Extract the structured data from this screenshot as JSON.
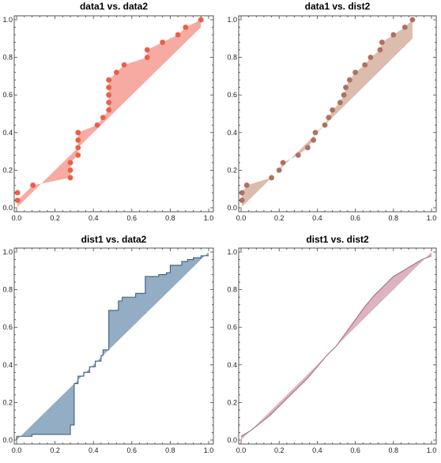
{
  "chart_data": [
    {
      "type": "scatter",
      "title": "data1 vs. data2",
      "xlabel": "",
      "ylabel": "",
      "xlim": [
        0,
        1
      ],
      "ylim": [
        0,
        1
      ],
      "xticks": [
        "0.0",
        "0.2",
        "0.4",
        "0.6",
        "0.8",
        "1.0"
      ],
      "yticks": [
        "0.0",
        "0.2",
        "0.4",
        "0.6",
        "0.8",
        "1.0"
      ],
      "fill_to_diagonal": true,
      "color": "#e8604a",
      "fill_color": "#f7aaa2",
      "points": [
        [
          0.005,
          0.08
        ],
        [
          0.005,
          0.04
        ],
        [
          0.085,
          0.12
        ],
        [
          0.28,
          0.16
        ],
        [
          0.28,
          0.2
        ],
        [
          0.28,
          0.24
        ],
        [
          0.32,
          0.28
        ],
        [
          0.32,
          0.32
        ],
        [
          0.32,
          0.36
        ],
        [
          0.32,
          0.4
        ],
        [
          0.42,
          0.44
        ],
        [
          0.45,
          0.48
        ],
        [
          0.48,
          0.52
        ],
        [
          0.48,
          0.56
        ],
        [
          0.48,
          0.6
        ],
        [
          0.48,
          0.64
        ],
        [
          0.48,
          0.68
        ],
        [
          0.52,
          0.72
        ],
        [
          0.56,
          0.76
        ],
        [
          0.68,
          0.8
        ],
        [
          0.68,
          0.84
        ],
        [
          0.76,
          0.88
        ],
        [
          0.84,
          0.92
        ],
        [
          0.88,
          0.96
        ],
        [
          0.96,
          1.0
        ]
      ]
    },
    {
      "type": "scatter",
      "title": "data1 vs. dist2",
      "xlabel": "",
      "ylabel": "",
      "xlim": [
        0,
        1
      ],
      "ylim": [
        0,
        1
      ],
      "xticks": [
        "0.0",
        "0.2",
        "0.4",
        "0.6",
        "0.8",
        "1.0"
      ],
      "yticks": [
        "0.0",
        "0.2",
        "0.4",
        "0.6",
        "0.8",
        "1.0"
      ],
      "fill_to_diagonal": true,
      "color": "#b07060",
      "fill_color": "#dcbcad",
      "points": [
        [
          0.005,
          0.04
        ],
        [
          0.005,
          0.08
        ],
        [
          0.03,
          0.12
        ],
        [
          0.16,
          0.16
        ],
        [
          0.2,
          0.2
        ],
        [
          0.22,
          0.24
        ],
        [
          0.3,
          0.28
        ],
        [
          0.35,
          0.32
        ],
        [
          0.38,
          0.36
        ],
        [
          0.39,
          0.4
        ],
        [
          0.44,
          0.44
        ],
        [
          0.46,
          0.48
        ],
        [
          0.48,
          0.52
        ],
        [
          0.52,
          0.56
        ],
        [
          0.54,
          0.6
        ],
        [
          0.55,
          0.64
        ],
        [
          0.57,
          0.68
        ],
        [
          0.6,
          0.72
        ],
        [
          0.65,
          0.76
        ],
        [
          0.68,
          0.8
        ],
        [
          0.73,
          0.84
        ],
        [
          0.74,
          0.88
        ],
        [
          0.8,
          0.92
        ],
        [
          0.86,
          0.96
        ],
        [
          0.9,
          1.0
        ]
      ]
    },
    {
      "type": "area",
      "title": "dist1 vs. data2",
      "xlabel": "",
      "ylabel": "",
      "xlim": [
        0,
        1
      ],
      "ylim": [
        0,
        1
      ],
      "xticks": [
        "0.0",
        "0.2",
        "0.4",
        "0.6",
        "0.8",
        "1.0"
      ],
      "yticks": [
        "0.0",
        "0.2",
        "0.4",
        "0.6",
        "0.8",
        "1.0"
      ],
      "fill_to_diagonal": true,
      "line_color": "#44607c",
      "fill_color": "#93adc4",
      "step_line": [
        [
          0.0,
          0.0
        ],
        [
          0.0,
          0.02
        ],
        [
          0.08,
          0.02
        ],
        [
          0.08,
          0.03
        ],
        [
          0.28,
          0.03
        ],
        [
          0.28,
          0.08
        ],
        [
          0.3,
          0.08
        ],
        [
          0.3,
          0.3
        ],
        [
          0.32,
          0.3
        ],
        [
          0.32,
          0.34
        ],
        [
          0.35,
          0.34
        ],
        [
          0.35,
          0.36
        ],
        [
          0.38,
          0.36
        ],
        [
          0.38,
          0.39
        ],
        [
          0.41,
          0.39
        ],
        [
          0.41,
          0.42
        ],
        [
          0.44,
          0.42
        ],
        [
          0.44,
          0.45
        ],
        [
          0.45,
          0.45
        ],
        [
          0.45,
          0.48
        ],
        [
          0.48,
          0.48
        ],
        [
          0.48,
          0.69
        ],
        [
          0.53,
          0.69
        ],
        [
          0.53,
          0.74
        ],
        [
          0.55,
          0.74
        ],
        [
          0.55,
          0.76
        ],
        [
          0.62,
          0.76
        ],
        [
          0.62,
          0.78
        ],
        [
          0.67,
          0.78
        ],
        [
          0.67,
          0.87
        ],
        [
          0.74,
          0.87
        ],
        [
          0.74,
          0.88
        ],
        [
          0.78,
          0.88
        ],
        [
          0.78,
          0.89
        ],
        [
          0.8,
          0.89
        ],
        [
          0.8,
          0.93
        ],
        [
          0.86,
          0.93
        ],
        [
          0.86,
          0.95
        ],
        [
          0.89,
          0.95
        ],
        [
          0.89,
          0.96
        ],
        [
          0.92,
          0.96
        ],
        [
          0.92,
          0.97
        ],
        [
          0.96,
          0.97
        ],
        [
          0.96,
          0.98
        ],
        [
          1.0,
          0.98
        ]
      ]
    },
    {
      "type": "area",
      "title": "dist1 vs. dist2",
      "xlabel": "",
      "ylabel": "",
      "xlim": [
        0,
        1
      ],
      "ylim": [
        0,
        1
      ],
      "xticks": [
        "0.0",
        "0.2",
        "0.4",
        "0.6",
        "0.8",
        "1.0"
      ],
      "yticks": [
        "0.0",
        "0.2",
        "0.4",
        "0.6",
        "0.8",
        "1.0"
      ],
      "fill_to_diagonal": true,
      "line_color": "#a86c80",
      "fill_color": "#dcb3c0",
      "curve": [
        [
          0.0,
          0.02
        ],
        [
          0.05,
          0.05
        ],
        [
          0.1,
          0.09
        ],
        [
          0.15,
          0.13
        ],
        [
          0.2,
          0.18
        ],
        [
          0.25,
          0.23
        ],
        [
          0.3,
          0.28
        ],
        [
          0.35,
          0.33
        ],
        [
          0.4,
          0.39
        ],
        [
          0.45,
          0.45
        ],
        [
          0.5,
          0.5
        ],
        [
          0.55,
          0.57
        ],
        [
          0.6,
          0.64
        ],
        [
          0.65,
          0.71
        ],
        [
          0.7,
          0.77
        ],
        [
          0.75,
          0.82
        ],
        [
          0.8,
          0.87
        ],
        [
          0.85,
          0.9
        ],
        [
          0.9,
          0.93
        ],
        [
          0.95,
          0.96
        ],
        [
          1.0,
          0.98
        ]
      ]
    }
  ]
}
